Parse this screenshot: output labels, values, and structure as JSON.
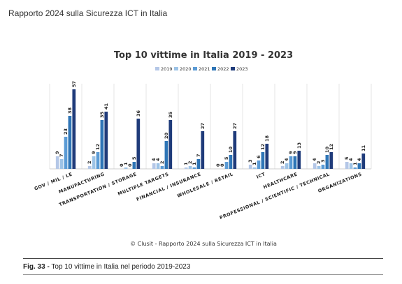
{
  "header": {
    "title": "Rapporto 2024 sulla Sicurezza ICT in Italia"
  },
  "chart_data": {
    "type": "bar",
    "title": "Top 10 vittime in Italia 2019 - 2023",
    "source_note": "© Clusit - Rapporto 2024 sulla Sicurezza ICT in Italia",
    "legend_position": "top",
    "grid": false,
    "categories": [
      "GOV / MIL / LE",
      "MANUFACTURING",
      "TRANSPORTATION / STORAGE",
      "MULTIPLE TARGETS",
      "FINANCIAL / INSURANCE",
      "WHOLESALE / RETAIL",
      "ICT",
      "HEALTHCARE",
      "PROFESSIONAL / SCIENTIFIC / TECHNICAL",
      "ORGANIZATIONS"
    ],
    "series": [
      {
        "name": "2019",
        "color": "#b4c7e7",
        "values": [
          9,
          2,
          0,
          4,
          1,
          0,
          3,
          2,
          4,
          5
        ]
      },
      {
        "name": "2020",
        "color": "#9dc3e6",
        "values": [
          7,
          9,
          1,
          4,
          2,
          0,
          1,
          4,
          2,
          4
        ]
      },
      {
        "name": "2021",
        "color": "#5b9bd5",
        "values": [
          23,
          12,
          0,
          2,
          1,
          5,
          6,
          9,
          3,
          1
        ]
      },
      {
        "name": "2022",
        "color": "#2e75b6",
        "values": [
          38,
          35,
          5,
          20,
          7,
          10,
          12,
          9,
          10,
          4
        ]
      },
      {
        "name": "2023",
        "color": "#1f3b7a",
        "values": [
          57,
          41,
          36,
          35,
          27,
          27,
          18,
          13,
          12,
          11
        ]
      }
    ],
    "ylim": [
      0,
      57
    ]
  },
  "caption": {
    "label": "Fig. 33 -",
    "text": "Top 10 vittime in Italia nel periodo 2019-2023"
  }
}
